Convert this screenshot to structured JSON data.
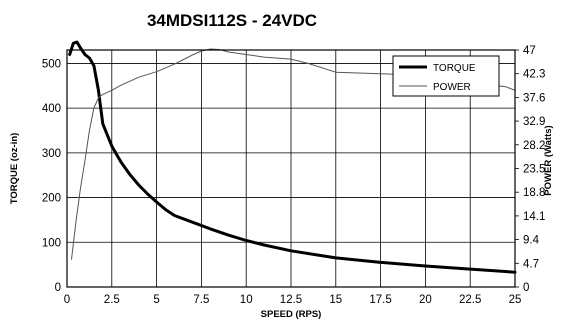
{
  "chart_data": {
    "type": "line",
    "title": "34MDSI112S  - 24VDC",
    "xlabel": "SPEED (RPS)",
    "ylabel": "TORQUE (oz-in)",
    "y2label": "POWER (Watts)",
    "xlim": [
      0,
      25
    ],
    "ylim": [
      0,
      530
    ],
    "y2lim": [
      0,
      47
    ],
    "x_ticks": [
      "0",
      "2.5",
      "5",
      "7.5",
      "10",
      "12.5",
      "15",
      "17.5",
      "20",
      "22.5",
      "25"
    ],
    "y_ticks": [
      "0",
      "100",
      "200",
      "300",
      "400",
      "500"
    ],
    "y2_ticks": [
      "0",
      "4.7",
      "9.4",
      "14.1",
      "18.8",
      "23.5",
      "28.2",
      "32.9",
      "37.6",
      "42.3",
      "47"
    ],
    "grid": true,
    "legend": "top-right",
    "series": [
      {
        "name": "TORQUE",
        "axis": "left",
        "x": [
          0.15,
          0.35,
          0.55,
          0.75,
          1.0,
          1.25,
          1.5,
          1.75,
          2.0,
          2.5,
          3.0,
          3.5,
          4.0,
          4.5,
          5.0,
          5.5,
          6.0,
          7.0,
          8.0,
          9.0,
          10.0,
          11.0,
          12.5,
          15.0,
          17.5,
          20.0,
          22.5,
          25.0
        ],
        "y": [
          520,
          545,
          548,
          535,
          520,
          512,
          495,
          440,
          365,
          315,
          280,
          252,
          228,
          208,
          190,
          173,
          160,
          145,
          130,
          116,
          104,
          94,
          81,
          65,
          55,
          47,
          40,
          33
        ]
      },
      {
        "name": "POWER",
        "axis": "right",
        "x": [
          0.25,
          0.5,
          0.75,
          1.0,
          1.25,
          1.5,
          1.75,
          2.0,
          2.5,
          3.0,
          3.5,
          4.0,
          5.0,
          6.0,
          7.0,
          7.5,
          8.0,
          8.5,
          9.0,
          10.0,
          11.0,
          12.5,
          13.5,
          15.0,
          17.5,
          20.0,
          22.5,
          24.5,
          25.0
        ],
        "y": [
          5.5,
          13.0,
          19.5,
          25.0,
          31.0,
          35.5,
          37.5,
          38.2,
          39.0,
          40.0,
          40.8,
          41.6,
          42.7,
          44.2,
          46.0,
          46.8,
          47.2,
          47.1,
          46.6,
          46.1,
          45.6,
          45.2,
          44.3,
          42.6,
          42.3,
          42.0,
          40.5,
          39.7,
          39.0
        ]
      }
    ]
  },
  "colors": {
    "torque": "#000000",
    "power": "#555555",
    "grid": "#000000"
  }
}
